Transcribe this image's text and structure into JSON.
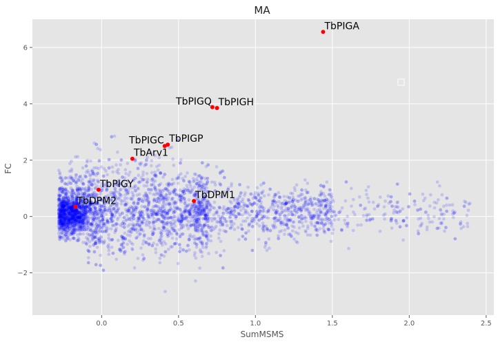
{
  "chart_data": {
    "type": "scatter",
    "title": "MA",
    "xlabel": "SumMSMS",
    "ylabel": "FC",
    "xlim": [
      -0.45,
      2.55
    ],
    "ylim": [
      -3.5,
      7.0
    ],
    "xticks": [
      0.0,
      0.5,
      1.0,
      1.5,
      2.0,
      2.5
    ],
    "xtick_labels": [
      "0.0",
      "0.5",
      "1.0",
      "1.5",
      "2.0",
      "2.5"
    ],
    "yticks": [
      -2,
      0,
      2,
      4,
      6
    ],
    "ytick_labels": [
      "−2",
      "0",
      "2",
      "4",
      "6"
    ],
    "grid": true,
    "background_color": "#e5e5e5",
    "grid_color": "#ffffff",
    "background_cloud": {
      "color": "#0000ff",
      "alpha": 0.15,
      "approx_count": 4000,
      "description": "dense cloud of background proteins, densest near x≈-0.2 to 0.2, y≈0",
      "x_range": [
        -0.35,
        2.4
      ],
      "y_range": [
        -3.0,
        3.1
      ]
    },
    "highlighted": {
      "color": "#ff0000",
      "points": [
        {
          "label": "TbPIGA",
          "x": 1.44,
          "y": 6.55
        },
        {
          "label": "TbPIGQ",
          "x": 0.72,
          "y": 3.88
        },
        {
          "label": "TbPIGH",
          "x": 0.75,
          "y": 3.85
        },
        {
          "label": "TbPIGC",
          "x": 0.41,
          "y": 2.5
        },
        {
          "label": "TbPIGP",
          "x": 0.43,
          "y": 2.55
        },
        {
          "label": "TbArv1",
          "x": 0.2,
          "y": 2.05
        },
        {
          "label": "TbPIGY",
          "x": -0.02,
          "y": 0.95
        },
        {
          "label": "TbDPM1",
          "x": 0.6,
          "y": 0.55
        },
        {
          "label": "TbDPM2",
          "x": -0.17,
          "y": 0.35
        }
      ]
    }
  }
}
